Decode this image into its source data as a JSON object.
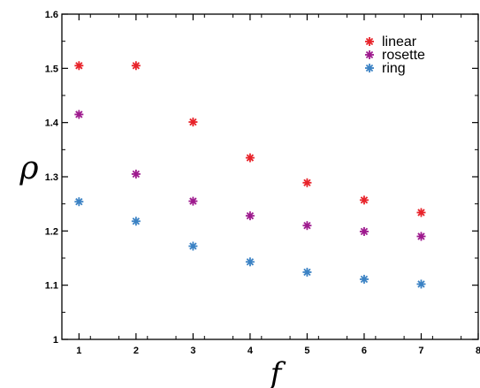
{
  "chart_data": {
    "type": "scatter",
    "title": "",
    "xlabel": "f",
    "ylabel": "ρ",
    "xlim": [
      0.7,
      8.0
    ],
    "ylim": [
      1.0,
      1.6
    ],
    "xticks": [
      1,
      2,
      3,
      4,
      5,
      6,
      7,
      8
    ],
    "yticks": [
      1,
      1.1,
      1.2,
      1.3,
      1.4,
      1.5,
      1.6
    ],
    "legend_position": "top-right",
    "marker": "asterisk",
    "series": [
      {
        "name": "linear",
        "color": "#e8232a",
        "x": [
          1,
          2,
          3,
          4,
          5,
          6,
          7
        ],
        "y": [
          1.505,
          1.505,
          1.401,
          1.335,
          1.289,
          1.257,
          1.234
        ]
      },
      {
        "name": "rosette",
        "color": "#9e1a8e",
        "x": [
          1,
          2,
          3,
          4,
          5,
          6,
          7
        ],
        "y": [
          1.415,
          1.305,
          1.255,
          1.228,
          1.21,
          1.199,
          1.19
        ]
      },
      {
        "name": "ring",
        "color": "#3b82c4",
        "x": [
          1,
          2,
          3,
          4,
          5,
          6,
          7
        ],
        "y": [
          1.254,
          1.218,
          1.172,
          1.143,
          1.124,
          1.111,
          1.102
        ]
      }
    ]
  }
}
